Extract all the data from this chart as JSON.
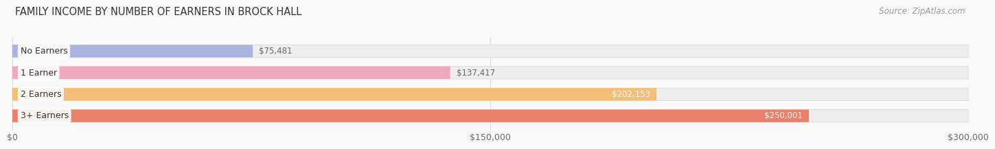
{
  "title": "FAMILY INCOME BY NUMBER OF EARNERS IN BROCK HALL",
  "source": "Source: ZipAtlas.com",
  "categories": [
    "No Earners",
    "1 Earner",
    "2 Earners",
    "3+ Earners"
  ],
  "values": [
    75481,
    137417,
    202153,
    250001
  ],
  "bar_colors": [
    "#aab4e0",
    "#f0a8bf",
    "#f5be78",
    "#e8806a"
  ],
  "bar_bg_color": "#eeeeee",
  "bar_border_color": "#dddddd",
  "label_colors_inside": [
    "#ffffff",
    "#ffffff",
    "#ffffff",
    "#ffffff"
  ],
  "label_colors_outside": [
    "#666666",
    "#666666",
    "#666666",
    "#666666"
  ],
  "xlim": [
    0,
    300000
  ],
  "xtick_labels": [
    "$0",
    "$150,000",
    "$300,000"
  ],
  "xtick_values": [
    0,
    150000,
    300000
  ],
  "title_fontsize": 10.5,
  "source_fontsize": 8.5,
  "tick_fontsize": 9,
  "bar_label_fontsize": 8.5,
  "category_fontsize": 9,
  "background_color": "#f9f9f9",
  "bar_height": 0.58,
  "value_threshold": 165000
}
